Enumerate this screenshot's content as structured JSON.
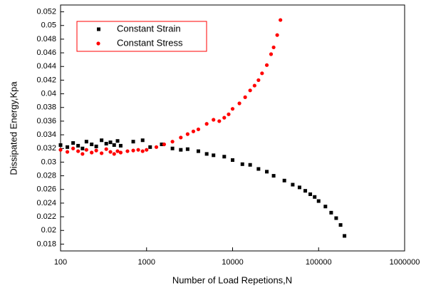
{
  "chart_data": {
    "type": "scatter",
    "x_label": "Number of Load Repetions,N",
    "y_label": "Dissipated Energy,Kpa",
    "xscale": "log",
    "xlim": [
      100,
      1000000
    ],
    "xticks": [
      100,
      1000,
      10000,
      100000,
      1000000
    ],
    "ylim": [
      0.017,
      0.053
    ],
    "yticks": [
      0.018,
      0.02,
      0.022,
      0.024,
      0.026,
      0.028,
      0.03,
      0.032,
      0.034,
      0.036,
      0.038,
      0.04,
      0.042,
      0.044,
      0.046,
      0.048,
      0.05,
      0.052
    ],
    "legend": "upper-left",
    "series": [
      {
        "name": "Constant Strain",
        "color": "#000000",
        "marker": "square",
        "x": [
          100,
          120,
          140,
          160,
          180,
          200,
          230,
          260,
          300,
          340,
          380,
          420,
          460,
          500,
          700,
          900,
          1100,
          1500,
          2000,
          2500,
          3000,
          4000,
          5000,
          6000,
          8000,
          10000,
          13000,
          16000,
          20000,
          25000,
          30000,
          40000,
          50000,
          60000,
          70000,
          80000,
          90000,
          100000,
          120000,
          140000,
          160000,
          180000,
          200000
        ],
        "values": [
          0.0325,
          0.0322,
          0.0328,
          0.0324,
          0.032,
          0.033,
          0.0326,
          0.0323,
          0.0332,
          0.0327,
          0.0329,
          0.0325,
          0.0331,
          0.0324,
          0.033,
          0.0332,
          0.0322,
          0.0326,
          0.032,
          0.0318,
          0.0319,
          0.0316,
          0.0312,
          0.031,
          0.0308,
          0.0303,
          0.0297,
          0.0296,
          0.029,
          0.0286,
          0.028,
          0.0273,
          0.0267,
          0.0263,
          0.0258,
          0.0253,
          0.0249,
          0.0243,
          0.0235,
          0.0226,
          0.0218,
          0.0208,
          0.0192
        ]
      },
      {
        "name": "Constant Stress",
        "color": "#ff0000",
        "marker": "circle",
        "x": [
          100,
          120,
          140,
          160,
          180,
          200,
          230,
          260,
          300,
          340,
          380,
          420,
          460,
          500,
          600,
          700,
          800,
          900,
          1000,
          1300,
          1600,
          2000,
          2500,
          3000,
          3500,
          4000,
          5000,
          6000,
          7000,
          8000,
          9000,
          10000,
          12000,
          14000,
          16000,
          18000,
          20000,
          22000,
          25000,
          28000,
          30000,
          33000,
          36000
        ],
        "values": [
          0.0318,
          0.0315,
          0.032,
          0.0316,
          0.0312,
          0.0318,
          0.0314,
          0.0317,
          0.0313,
          0.0319,
          0.0315,
          0.0312,
          0.0316,
          0.0314,
          0.0316,
          0.0317,
          0.0318,
          0.0316,
          0.0318,
          0.0322,
          0.0326,
          0.033,
          0.0336,
          0.0341,
          0.0345,
          0.0348,
          0.0356,
          0.0362,
          0.036,
          0.0365,
          0.037,
          0.0378,
          0.0386,
          0.0395,
          0.0405,
          0.0412,
          0.042,
          0.043,
          0.0442,
          0.0458,
          0.0468,
          0.0486,
          0.0508
        ]
      }
    ]
  }
}
